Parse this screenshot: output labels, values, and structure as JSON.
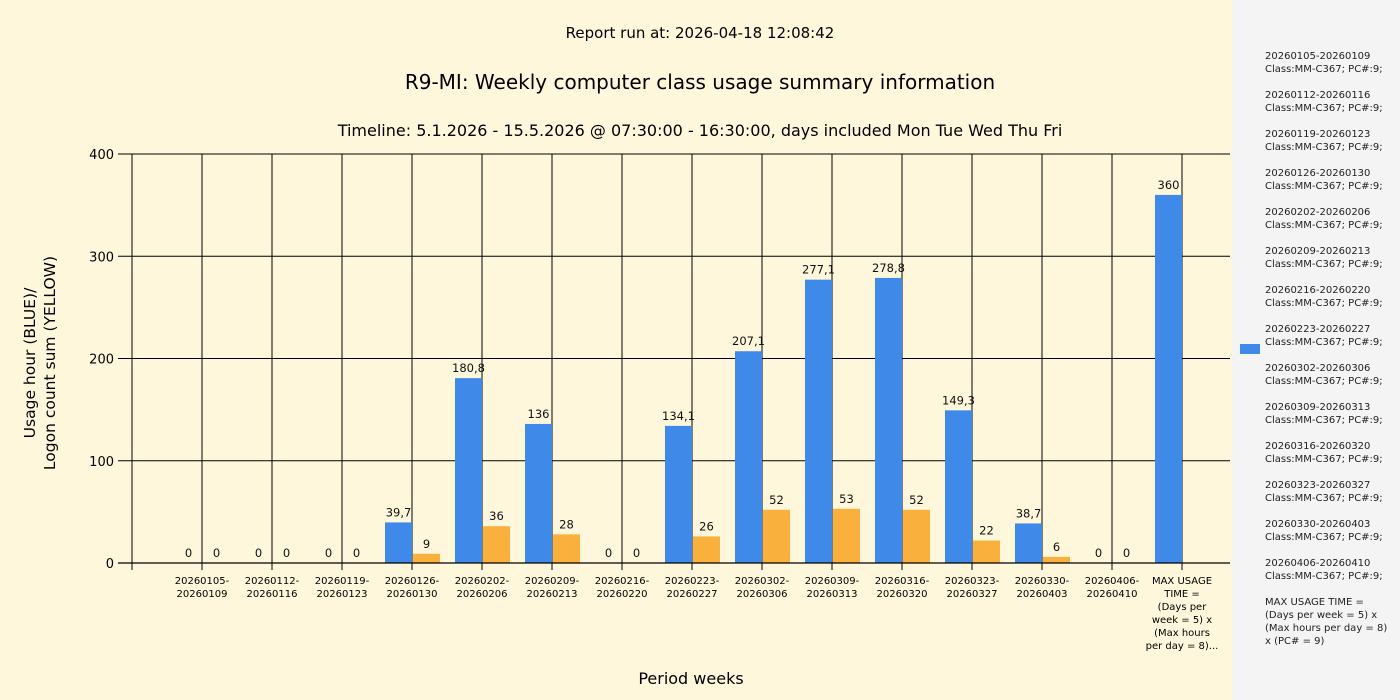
{
  "report_run": "Report run at: 2026-04-18 12:08:42",
  "colors": {
    "usage": "#3f8ae8",
    "logon": "#f9b03c",
    "background": "#fff7dc",
    "legend_bg": "#f4f4f4"
  },
  "chart_data": {
    "type": "bar",
    "title": "R9-MI: Weekly computer class usage summary information",
    "subtitle": "Timeline:  5.1.2026  - 15.5.2026  @  07:30:00 -  16:30:00, days included Mon Tue Wed Thu Fri",
    "xlabel": "Period weeks",
    "ylabel_line1": "Usage hour (BLUE)/",
    "ylabel_line2": "Logon count sum (YELLOW)",
    "ylim": [
      0,
      400
    ],
    "yticks": [
      "0",
      "100",
      "200",
      "300",
      "400"
    ],
    "ytick_values": [
      0,
      100,
      200,
      300,
      400
    ],
    "grid": true,
    "legend_position": "right",
    "categories": [
      [
        "20260105-",
        "20260109"
      ],
      [
        "20260112-",
        "20260116"
      ],
      [
        "20260119-",
        "20260123"
      ],
      [
        "20260126-",
        "20260130"
      ],
      [
        "20260202-",
        "20260206"
      ],
      [
        "20260209-",
        "20260213"
      ],
      [
        "20260216-",
        "20260220"
      ],
      [
        "20260223-",
        "20260227"
      ],
      [
        "20260302-",
        "20260306"
      ],
      [
        "20260309-",
        "20260313"
      ],
      [
        "20260316-",
        "20260320"
      ],
      [
        "20260323-",
        "20260327"
      ],
      [
        "20260330-",
        "20260403"
      ],
      [
        "20260406-",
        "20260410"
      ],
      [
        "MAX USAGE",
        "TIME =",
        "(Days per",
        "week = 5) x",
        "(Max hours",
        "per day = 8)..."
      ]
    ],
    "series": [
      {
        "name": "Usage hour",
        "values": [
          0,
          0,
          0,
          39.7,
          180.8,
          136,
          0,
          134.1,
          207.1,
          277.1,
          278.8,
          149.3,
          38.7,
          0,
          360
        ],
        "labels": [
          "0",
          "0",
          "0",
          "39,7",
          "180,8",
          "136",
          "0",
          "134,1",
          "207,1",
          "277,1",
          "278,8",
          "149,3",
          "38,7",
          "0",
          "360"
        ]
      },
      {
        "name": "Logon count sum",
        "values": [
          0,
          0,
          0,
          9,
          36,
          28,
          0,
          26,
          52,
          53,
          52,
          22,
          6,
          0,
          null
        ],
        "labels": [
          "0",
          "0",
          "0",
          "9",
          "36",
          "28",
          "0",
          "26",
          "52",
          "53",
          "52",
          "22",
          "6",
          "0",
          null
        ]
      }
    ]
  },
  "legend": [
    [
      "20260105-20260109",
      "Class:MM-C367; PC#:9;"
    ],
    [
      "20260112-20260116",
      "Class:MM-C367; PC#:9;"
    ],
    [
      "20260119-20260123",
      "Class:MM-C367; PC#:9;"
    ],
    [
      "20260126-20260130",
      "Class:MM-C367; PC#:9;"
    ],
    [
      "20260202-20260206",
      "Class:MM-C367; PC#:9;"
    ],
    [
      "20260209-20260213",
      "Class:MM-C367; PC#:9;"
    ],
    [
      "20260216-20260220",
      "Class:MM-C367; PC#:9;"
    ],
    [
      "20260223-20260227",
      "Class:MM-C367; PC#:9;"
    ],
    [
      "20260302-20260306",
      "Class:MM-C367; PC#:9;"
    ],
    [
      "20260309-20260313",
      "Class:MM-C367; PC#:9;"
    ],
    [
      "20260316-20260320",
      "Class:MM-C367; PC#:9;"
    ],
    [
      "20260323-20260327",
      "Class:MM-C367; PC#:9;"
    ],
    [
      "20260330-20260403",
      "Class:MM-C367; PC#:9;"
    ],
    [
      "20260406-20260410",
      "Class:MM-C367; PC#:9;"
    ],
    [
      "MAX USAGE TIME =",
      " (Days per week = 5) x (Max hours per day = 8) x (PC# = 9)"
    ]
  ]
}
